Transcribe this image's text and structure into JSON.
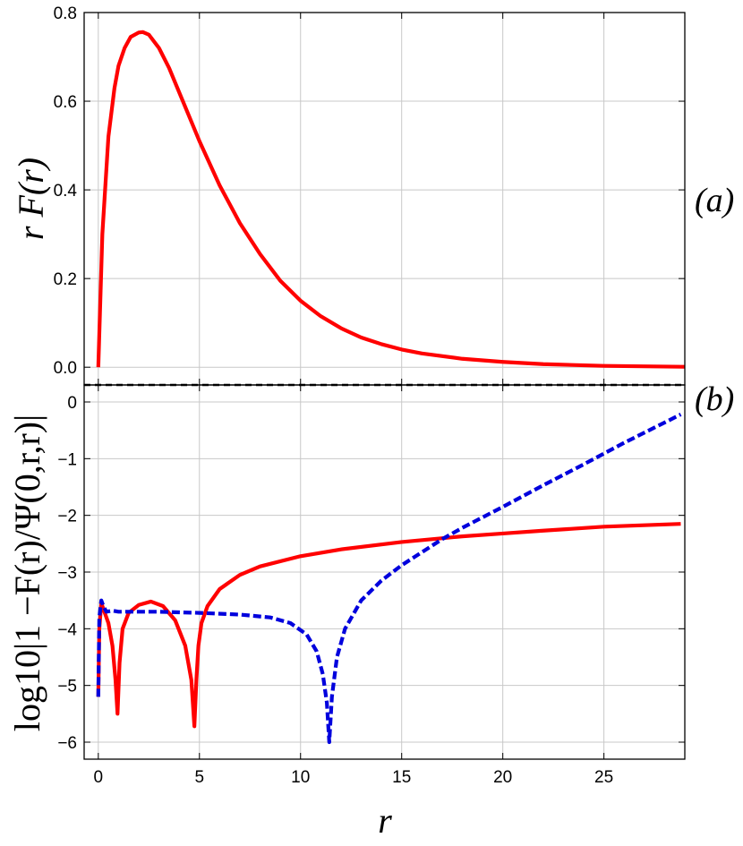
{
  "chart_data": [
    {
      "type": "line",
      "panel_label": "(a)",
      "ylabel": "r F(r)",
      "xlim": [
        -0.7,
        29.0
      ],
      "ylim": [
        -0.04,
        0.8
      ],
      "grid": true,
      "x_ticks": [
        0,
        5,
        10,
        15,
        20,
        25
      ],
      "y_ticks": [
        0.0,
        0.2,
        0.4,
        0.6,
        0.8
      ],
      "y_tick_labels": [
        "0.0",
        "0.2",
        "0.4",
        "0.6",
        "0.8"
      ],
      "series": [
        {
          "color": "#ff0000",
          "style": "solid",
          "x": [
            0,
            0.2,
            0.5,
            0.8,
            1.0,
            1.3,
            1.6,
            2.0,
            2.2,
            2.5,
            3.0,
            3.5,
            4.0,
            5.0,
            6.0,
            7.0,
            8.0,
            9.0,
            10.0,
            11.0,
            12.0,
            13.0,
            14.0,
            15.0,
            16.0,
            18.0,
            20.0,
            22.0,
            25.0,
            29.0
          ],
          "values": [
            0.0,
            0.3,
            0.52,
            0.63,
            0.68,
            0.72,
            0.745,
            0.755,
            0.756,
            0.75,
            0.72,
            0.675,
            0.62,
            0.51,
            0.41,
            0.325,
            0.255,
            0.195,
            0.15,
            0.115,
            0.088,
            0.067,
            0.052,
            0.04,
            0.031,
            0.019,
            0.012,
            0.007,
            0.003,
            0.001
          ]
        }
      ]
    },
    {
      "type": "line",
      "panel_label": "(b)",
      "ylabel": "log10|1 −F(r)/Ψ(0,r,r)|",
      "xlabel": "r",
      "xlim": [
        -0.7,
        29.0
      ],
      "ylim": [
        -6.3,
        0.3
      ],
      "grid": true,
      "x_ticks": [
        0,
        5,
        10,
        15,
        20,
        25
      ],
      "x_tick_labels": [
        "0",
        "5",
        "10",
        "15",
        "20",
        "25"
      ],
      "y_ticks": [
        0,
        -1,
        -2,
        -3,
        -4,
        -5,
        -6
      ],
      "y_tick_labels": [
        "0",
        "−1",
        "−2",
        "−3",
        "−4",
        "−5",
        "−6"
      ],
      "series": [
        {
          "color": "#ff0000",
          "style": "solid",
          "x": [
            0,
            0.05,
            0.15,
            0.3,
            0.5,
            0.7,
            0.85,
            0.95,
            1.05,
            1.2,
            1.5,
            2.0,
            2.6,
            3.2,
            3.8,
            4.3,
            4.6,
            4.75,
            4.85,
            4.95,
            5.1,
            5.4,
            6.0,
            7.0,
            8.0,
            10.0,
            12.0,
            15.0,
            18.0,
            20.0,
            22.0,
            25.0,
            28.8
          ],
          "values": [
            -5.2,
            -4.0,
            -3.55,
            -3.7,
            -3.9,
            -4.3,
            -4.9,
            -5.5,
            -4.6,
            -4.0,
            -3.72,
            -3.58,
            -3.52,
            -3.6,
            -3.85,
            -4.3,
            -4.9,
            -5.72,
            -4.9,
            -4.3,
            -3.9,
            -3.6,
            -3.3,
            -3.05,
            -2.9,
            -2.72,
            -2.6,
            -2.47,
            -2.37,
            -2.32,
            -2.27,
            -2.2,
            -2.15
          ]
        },
        {
          "color": "#0000dd",
          "style": "dashed",
          "x": [
            0,
            0.05,
            0.15,
            0.25,
            0.4,
            0.7,
            1.0,
            2.0,
            3.0,
            5.0,
            7.0,
            8.5,
            9.5,
            10.3,
            10.8,
            11.1,
            11.3,
            11.42,
            11.55,
            11.8,
            12.2,
            13.0,
            14.0,
            15.0,
            16.0,
            17.0,
            18.0,
            20.0,
            22.0,
            24.0,
            26.0,
            28.8
          ],
          "values": [
            -5.2,
            -3.8,
            -3.5,
            -3.6,
            -3.7,
            -3.68,
            -3.7,
            -3.7,
            -3.7,
            -3.72,
            -3.75,
            -3.8,
            -3.9,
            -4.1,
            -4.4,
            -4.8,
            -5.3,
            -6.0,
            -5.2,
            -4.5,
            -4.0,
            -3.5,
            -3.15,
            -2.88,
            -2.65,
            -2.42,
            -2.22,
            -1.85,
            -1.47,
            -1.1,
            -0.72,
            -0.22
          ]
        }
      ]
    }
  ]
}
